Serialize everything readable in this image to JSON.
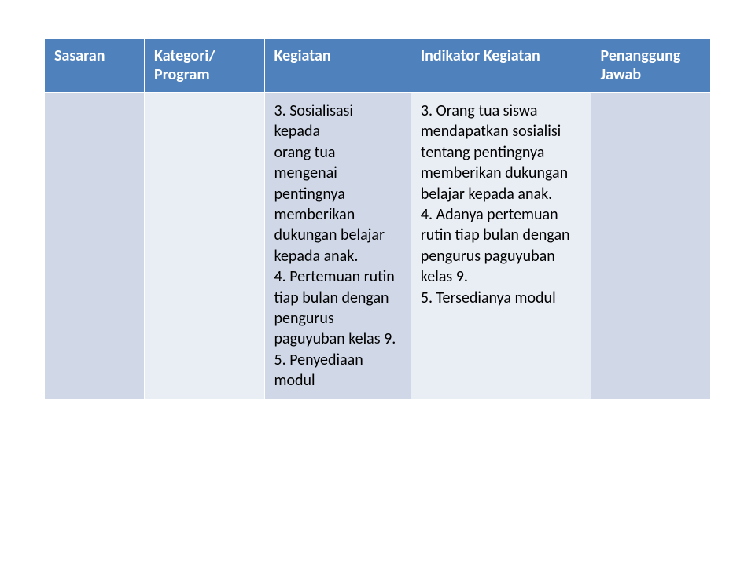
{
  "table": {
    "header_bg": "#4f81bd",
    "header_fg": "#ffffff",
    "row_bg_a": "#d0d8e8",
    "row_bg_b": "#e9edf4",
    "columns": [
      {
        "label": "Sasaran"
      },
      {
        "label": "Kategori/ Program"
      },
      {
        "label": "Kegiatan"
      },
      {
        "label": "Indikator Kegiatan"
      },
      {
        "label": "Penanggung Jawab"
      }
    ],
    "row": {
      "sasaran": "",
      "kategori": "",
      "kegiatan": "3. Sosialisasi kepada\norang tua mengenai pentingnya memberikan dukungan belajar\nkepada anak.\n4. Pertemuan rutin tiap bulan dengan pengurus paguyuban kelas 9.\n5. Penyediaan modul",
      "indikator": "3. Orang tua siswa mendapatkan sosialisi tentang pentingnya memberikan dukungan belajar kepada anak.\n4. Adanya pertemuan\nrutin tiap bulan dengan pengurus paguyuban kelas 9.\n5. Tersedianya modul",
      "penanggung": ""
    }
  }
}
